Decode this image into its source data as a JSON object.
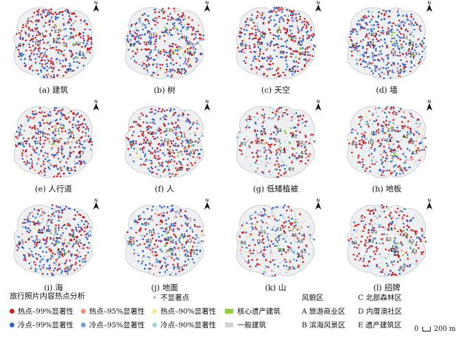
{
  "panels": [
    {
      "caption": "(a) 建筑",
      "north": "N",
      "zones": [
        "C",
        "E1",
        "D1",
        "D2",
        "B1",
        "E3",
        "E2",
        "A3",
        "A1",
        "A2",
        "B3"
      ],
      "distribution": {
        "hot": 0.45,
        "cold": 0.4,
        "hot95": 0.05,
        "cold95": 0.04,
        "hot90": 0.02,
        "cold90": 0.02,
        "other": 0.02
      }
    },
    {
      "caption": "(b) 树",
      "north": "N",
      "zones": [
        "C",
        "E1",
        "D1",
        "D2",
        "B1",
        "E3",
        "A3",
        "A1",
        "A2",
        "B3"
      ],
      "distribution": {
        "hot": 0.35,
        "cold": 0.4,
        "hot95": 0.05,
        "cold95": 0.05,
        "hot90": 0.03,
        "cold90": 0.05,
        "other": 0.07
      }
    },
    {
      "caption": "(c) 天空",
      "north": "N",
      "zones": [
        "C",
        "E1",
        "D1",
        "D2",
        "B1",
        "E3",
        "A3",
        "A1",
        "A2",
        "B3"
      ],
      "distribution": {
        "hot": 0.45,
        "cold": 0.4,
        "hot95": 0.04,
        "cold95": 0.05,
        "hot90": 0.02,
        "cold90": 0.02,
        "other": 0.02
      }
    },
    {
      "caption": "(d) 墙",
      "north": "N",
      "zones": [
        "C",
        "E1",
        "D1",
        "D2",
        "B1",
        "E3",
        "A3",
        "A1",
        "A2",
        "B3"
      ],
      "distribution": {
        "hot": 0.25,
        "cold": 0.55,
        "hot95": 0.04,
        "cold95": 0.06,
        "hot90": 0.02,
        "cold90": 0.04,
        "other": 0.04
      }
    },
    {
      "caption": "(e) 人行道",
      "north": "N",
      "zones": [
        "C",
        "E1",
        "D1",
        "D2",
        "B1",
        "E2",
        "E3",
        "A3",
        "A1",
        "A2",
        "B3",
        "A4"
      ],
      "distribution": {
        "hot": 0.4,
        "cold": 0.3,
        "hot95": 0.05,
        "cold95": 0.05,
        "hot90": 0.03,
        "cold90": 0.05,
        "other": 0.12
      }
    },
    {
      "caption": "(f) 人",
      "north": "N",
      "zones": [
        "C",
        "E1",
        "D1",
        "D2",
        "B1",
        "E2",
        "E3",
        "A1",
        "A2",
        "A3",
        "B3"
      ],
      "distribution": {
        "hot": 0.4,
        "cold": 0.3,
        "hot95": 0.05,
        "cold95": 0.05,
        "hot90": 0.03,
        "cold90": 0.05,
        "other": 0.12
      }
    },
    {
      "caption": "(g) 低矮植被",
      "north": "N",
      "zones": [
        "C",
        "E1",
        "D1",
        "D2",
        "B1",
        "E2",
        "E3",
        "A1",
        "A2",
        "A3",
        "B3",
        "A4"
      ],
      "distribution": {
        "hot": 0.3,
        "cold": 0.15,
        "hot95": 0.05,
        "cold95": 0.05,
        "hot90": 0.03,
        "cold90": 0.07,
        "other": 0.35
      }
    },
    {
      "caption": "(h) 地板",
      "north": "N",
      "zones": [
        "C",
        "E1",
        "D1",
        "D2",
        "B1",
        "E2",
        "E3",
        "A1",
        "A2",
        "A3",
        "B3"
      ],
      "distribution": {
        "hot": 0.3,
        "cold": 0.25,
        "hot95": 0.05,
        "cold95": 0.05,
        "hot90": 0.03,
        "cold90": 0.07,
        "other": 0.25
      }
    },
    {
      "caption": "(i) 海",
      "north": "N",
      "zones": [
        "C",
        "E1",
        "D1",
        "D2",
        "B1",
        "E2",
        "E3",
        "E4",
        "A1",
        "A2",
        "B3"
      ],
      "distribution": {
        "hot": 0.35,
        "cold": 0.45,
        "hot95": 0.04,
        "cold95": 0.05,
        "hot90": 0.02,
        "cold90": 0.04,
        "other": 0.05
      }
    },
    {
      "caption": "(j) 地面",
      "north": "N",
      "zones": [
        "C",
        "E1",
        "D1",
        "D2",
        "B1",
        "E2",
        "E3",
        "E4",
        "A1",
        "A2",
        "A3",
        "B3",
        "A4"
      ],
      "distribution": {
        "hot": 0.25,
        "cold": 0.35,
        "hot95": 0.05,
        "cold95": 0.05,
        "hot90": 0.03,
        "cold90": 0.07,
        "other": 0.2
      }
    },
    {
      "caption": "(k) 山",
      "north": "N",
      "zones": [
        "C",
        "E1",
        "D1",
        "D2",
        "B1",
        "E2",
        "E3",
        "A1",
        "A2",
        "A3",
        "B3",
        "A4"
      ],
      "distribution": {
        "hot": 0.2,
        "cold": 0.2,
        "hot95": 0.04,
        "cold95": 0.04,
        "hot90": 0.03,
        "cold90": 0.09,
        "other": 0.4
      }
    },
    {
      "caption": "(l) 招牌",
      "north": "N",
      "zones": [
        "C",
        "E1",
        "D1",
        "D2",
        "B1",
        "E2",
        "E3",
        "E4",
        "E6",
        "A1",
        "A2",
        "A3",
        "B3"
      ],
      "distribution": {
        "hot": 0.35,
        "cold": 0.15,
        "hot95": 0.05,
        "cold95": 0.04,
        "hot90": 0.03,
        "cold90": 0.08,
        "other": 0.3
      }
    }
  ],
  "legend": {
    "title": "旅行照片内容热点分析",
    "items": [
      {
        "label": "热点–99%显著性",
        "color": "#d7191c",
        "kind": "dot"
      },
      {
        "label": "热点–95%显著性",
        "color": "#f08a76",
        "kind": "dot"
      },
      {
        "label": "热点–90%显著性",
        "color": "#f3e98a",
        "kind": "dot"
      },
      {
        "label": "冷点–99%显著性",
        "color": "#2c62d8",
        "kind": "dot"
      },
      {
        "label": "冷点–95%显著性",
        "color": "#6fa3d8",
        "kind": "dot"
      },
      {
        "label": "冷点–90%显著性",
        "color": "#a6d2e8",
        "kind": "dot"
      }
    ],
    "not_significant": "不显著点",
    "core_heritage": {
      "label": "核心遗产建筑",
      "color": "#8ccf3c"
    },
    "general_building": {
      "label": "一般建筑",
      "color": "#cfd3d6"
    },
    "zone_title": "风貌区",
    "zones": [
      {
        "label": "A 旅游商业区"
      },
      {
        "label": "B 滨海风景区"
      },
      {
        "label": "C 北部森林区"
      },
      {
        "label": "D 内厝澳社区"
      },
      {
        "label": "E 遗产建筑区"
      }
    ],
    "scale_zero": "0",
    "scale_label": "200 m"
  }
}
